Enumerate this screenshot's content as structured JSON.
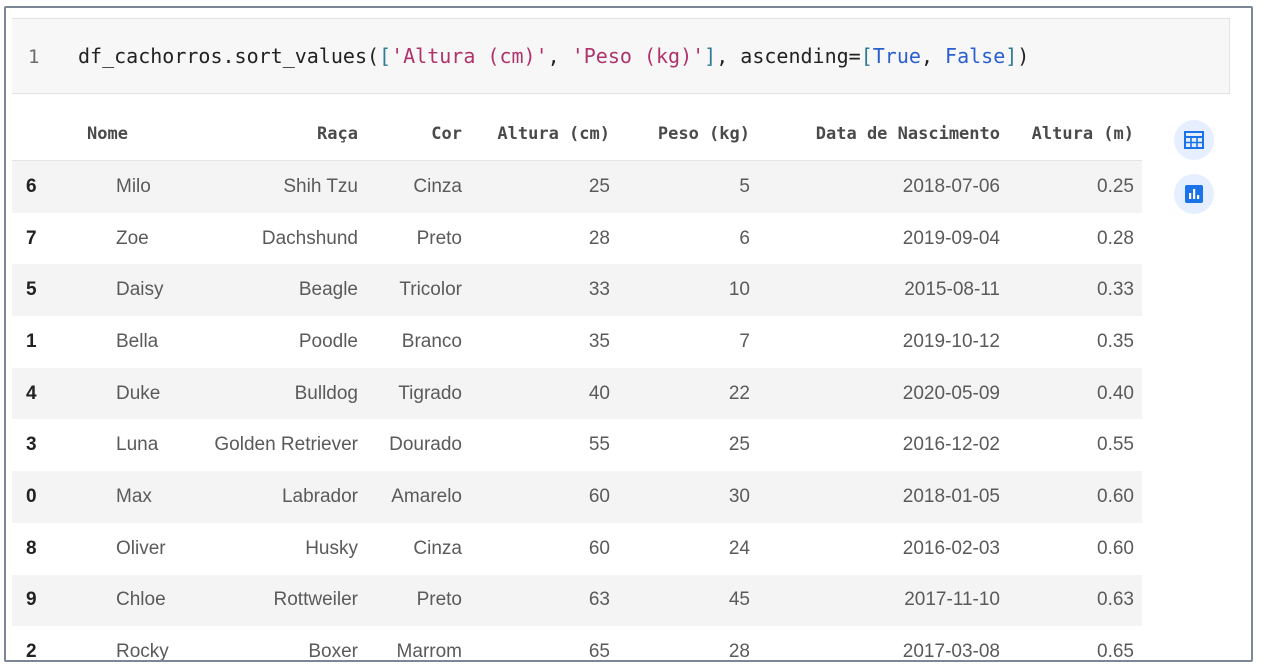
{
  "code_cell": {
    "line_number": "1",
    "code": {
      "var": "df_cachorros.sort_values(",
      "open_bracket": "[",
      "arg1": "'Altura (cm)'",
      "sep": ", ",
      "arg2": "'Peso (kg)'",
      "close_bracket": "]",
      "kw": ", ascending=",
      "open_bracket2": "[",
      "true_val": "True",
      "comma2": ", ",
      "false_val": "False",
      "close_bracket2": "]",
      "close_paren": ")"
    }
  },
  "dataframe": {
    "columns": [
      "",
      "Nome",
      "Raça",
      "Cor",
      "Altura (cm)",
      "Peso (kg)",
      "Data de Nascimento",
      "Altura (m)"
    ],
    "rows": [
      [
        "6",
        "Milo",
        "Shih Tzu",
        "Cinza",
        "25",
        "5",
        "2018-07-06",
        "0.25"
      ],
      [
        "7",
        "Zoe",
        "Dachshund",
        "Preto",
        "28",
        "6",
        "2019-09-04",
        "0.28"
      ],
      [
        "5",
        "Daisy",
        "Beagle",
        "Tricolor",
        "33",
        "10",
        "2015-08-11",
        "0.33"
      ],
      [
        "1",
        "Bella",
        "Poodle",
        "Branco",
        "35",
        "7",
        "2019-10-12",
        "0.35"
      ],
      [
        "4",
        "Duke",
        "Bulldog",
        "Tigrado",
        "40",
        "22",
        "2020-05-09",
        "0.40"
      ],
      [
        "3",
        "Luna",
        "Golden Retriever",
        "Dourado",
        "55",
        "25",
        "2016-12-02",
        "0.55"
      ],
      [
        "0",
        "Max",
        "Labrador",
        "Amarelo",
        "60",
        "30",
        "2018-01-05",
        "0.60"
      ],
      [
        "8",
        "Oliver",
        "Husky",
        "Cinza",
        "60",
        "24",
        "2016-02-03",
        "0.60"
      ],
      [
        "9",
        "Chloe",
        "Rottweiler",
        "Preto",
        "63",
        "45",
        "2017-11-10",
        "0.63"
      ],
      [
        "2",
        "Rocky",
        "Boxer",
        "Marrom",
        "65",
        "28",
        "2017-03-08",
        "0.65"
      ]
    ]
  },
  "side_buttons": [
    {
      "icon": "table-view-icon",
      "color": "#1a73e8"
    },
    {
      "icon": "chart-view-icon",
      "color": "#1a73e8"
    }
  ]
}
